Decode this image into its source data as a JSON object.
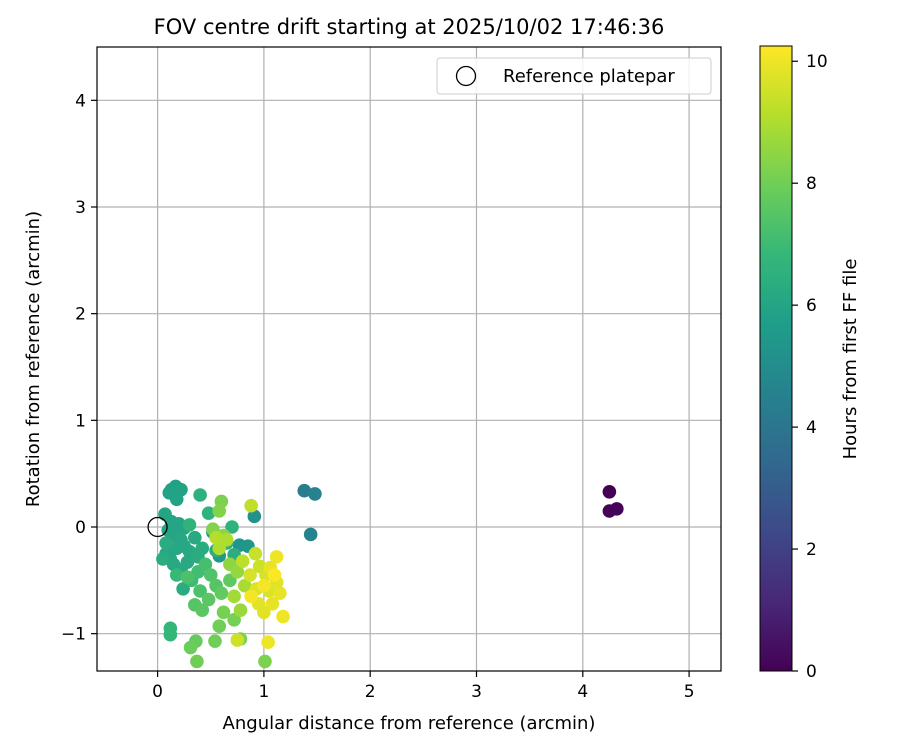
{
  "chart_data": {
    "type": "scatter",
    "title": "FOV centre drift starting at 2025/10/02 17:46:36",
    "xlabel": "Angular distance from reference (arcmin)",
    "ylabel": "Rotation from reference (arcmin)",
    "xlim": [
      -0.57,
      5.3
    ],
    "ylim": [
      -1.35,
      4.5
    ],
    "xticks": [
      0,
      1,
      2,
      3,
      4,
      5
    ],
    "yticks": [
      -1,
      0,
      1,
      2,
      3,
      4
    ],
    "grid": true,
    "legend": {
      "position": "top-right",
      "entries": [
        {
          "label": "Reference platepar",
          "marker": "open-circle"
        }
      ]
    },
    "reference_point": {
      "x": 0,
      "y": 0
    },
    "colorbar": {
      "label": "Hours from first FF file",
      "min": 0,
      "max": 10.25,
      "ticks": [
        0,
        2,
        4,
        6,
        8,
        10
      ],
      "colormap": "viridis"
    },
    "colormap_stops": [
      "#440154",
      "#482878",
      "#3e4989",
      "#31688e",
      "#26828e",
      "#1f9e89",
      "#35b779",
      "#6ece58",
      "#b5de2b",
      "#fde725"
    ],
    "points": [
      {
        "x": 4.25,
        "y": 0.33,
        "h": 0.0
      },
      {
        "x": 4.25,
        "y": 0.15,
        "h": 0.05
      },
      {
        "x": 4.32,
        "y": 0.17,
        "h": 0.1
      },
      {
        "x": 1.38,
        "y": 0.34,
        "h": 4.4
      },
      {
        "x": 1.48,
        "y": 0.31,
        "h": 4.5
      },
      {
        "x": 1.44,
        "y": -0.07,
        "h": 4.6
      },
      {
        "x": 0.91,
        "y": 0.1,
        "h": 5.2
      },
      {
        "x": 0.77,
        "y": -0.17,
        "h": 5.3
      },
      {
        "x": 0.85,
        "y": -0.18,
        "h": 5.4
      },
      {
        "x": 0.58,
        "y": -0.27,
        "h": 5.5
      },
      {
        "x": 0.52,
        "y": -0.05,
        "h": 5.6
      },
      {
        "x": 0.13,
        "y": 0.35,
        "h": 5.8
      },
      {
        "x": 0.17,
        "y": 0.38,
        "h": 5.8
      },
      {
        "x": 0.22,
        "y": 0.35,
        "h": 5.9
      },
      {
        "x": 0.11,
        "y": 0.32,
        "h": 5.9
      },
      {
        "x": 0.18,
        "y": 0.26,
        "h": 5.9
      },
      {
        "x": 0.07,
        "y": 0.12,
        "h": 6.0
      },
      {
        "x": 0.13,
        "y": 0.05,
        "h": 6.0
      },
      {
        "x": 0.2,
        "y": 0.03,
        "h": 6.0
      },
      {
        "x": 0.25,
        "y": -0.01,
        "h": 6.0
      },
      {
        "x": 0.1,
        "y": -0.03,
        "h": 6.0
      },
      {
        "x": 0.15,
        "y": -0.08,
        "h": 6.0
      },
      {
        "x": 0.22,
        "y": -0.12,
        "h": 6.1
      },
      {
        "x": 0.08,
        "y": -0.25,
        "h": 6.1
      },
      {
        "x": 0.12,
        "y": -0.3,
        "h": 6.1
      },
      {
        "x": 0.18,
        "y": -0.2,
        "h": 6.1
      },
      {
        "x": 0.25,
        "y": -0.18,
        "h": 6.1
      },
      {
        "x": 0.3,
        "y": -0.23,
        "h": 6.2
      },
      {
        "x": 0.15,
        "y": -0.35,
        "h": 6.2
      },
      {
        "x": 0.22,
        "y": -0.4,
        "h": 6.2
      },
      {
        "x": 0.28,
        "y": -0.33,
        "h": 6.2
      },
      {
        "x": 0.35,
        "y": -0.1,
        "h": 6.2
      },
      {
        "x": 0.38,
        "y": -0.28,
        "h": 6.3
      },
      {
        "x": 0.24,
        "y": -0.58,
        "h": 6.3
      },
      {
        "x": 0.42,
        "y": -0.2,
        "h": 6.3
      },
      {
        "x": 0.05,
        "y": -0.3,
        "h": 6.3
      },
      {
        "x": 0.08,
        "y": -0.15,
        "h": 6.3
      },
      {
        "x": 0.55,
        "y": -0.22,
        "h": 6.4
      },
      {
        "x": 0.65,
        "y": -0.15,
        "h": 6.4
      },
      {
        "x": 0.72,
        "y": -0.26,
        "h": 6.4
      },
      {
        "x": 0.4,
        "y": 0.3,
        "h": 6.5
      },
      {
        "x": 0.48,
        "y": 0.13,
        "h": 6.6
      },
      {
        "x": 0.7,
        "y": 0.0,
        "h": 6.6
      },
      {
        "x": 0.3,
        "y": 0.02,
        "h": 6.6
      },
      {
        "x": 0.12,
        "y": -0.95,
        "h": 6.8
      },
      {
        "x": 0.12,
        "y": -1.01,
        "h": 6.8
      },
      {
        "x": 0.18,
        "y": -0.45,
        "h": 6.9
      },
      {
        "x": 0.32,
        "y": -0.5,
        "h": 7.0
      },
      {
        "x": 0.38,
        "y": -0.42,
        "h": 7.1
      },
      {
        "x": 0.45,
        "y": -0.35,
        "h": 7.2
      },
      {
        "x": 0.28,
        "y": -0.47,
        "h": 7.3
      },
      {
        "x": 0.4,
        "y": -0.6,
        "h": 7.3
      },
      {
        "x": 0.5,
        "y": -0.45,
        "h": 7.4
      },
      {
        "x": 0.55,
        "y": -0.55,
        "h": 7.5
      },
      {
        "x": 0.35,
        "y": -0.73,
        "h": 7.5
      },
      {
        "x": 0.42,
        "y": -0.78,
        "h": 7.6
      },
      {
        "x": 0.48,
        "y": -0.68,
        "h": 7.6
      },
      {
        "x": 0.6,
        "y": -0.62,
        "h": 7.7
      },
      {
        "x": 0.68,
        "y": -0.5,
        "h": 7.7
      },
      {
        "x": 0.36,
        "y": -1.07,
        "h": 7.8
      },
      {
        "x": 0.31,
        "y": -1.13,
        "h": 7.9
      },
      {
        "x": 0.37,
        "y": -1.26,
        "h": 8.0
      },
      {
        "x": 0.54,
        "y": -1.07,
        "h": 8.0
      },
      {
        "x": 0.58,
        "y": -0.93,
        "h": 8.0
      },
      {
        "x": 0.62,
        "y": -0.8,
        "h": 8.1
      },
      {
        "x": 0.72,
        "y": -0.87,
        "h": 8.1
      },
      {
        "x": 0.78,
        "y": -1.05,
        "h": 8.2
      },
      {
        "x": 1.01,
        "y": -1.26,
        "h": 8.2
      },
      {
        "x": 0.6,
        "y": 0.24,
        "h": 8.2
      },
      {
        "x": 0.58,
        "y": 0.15,
        "h": 8.3
      },
      {
        "x": 0.52,
        "y": -0.02,
        "h": 8.3
      },
      {
        "x": 0.62,
        "y": -0.08,
        "h": 8.4
      },
      {
        "x": 0.68,
        "y": -0.35,
        "h": 8.5
      },
      {
        "x": 0.75,
        "y": -0.42,
        "h": 8.6
      },
      {
        "x": 0.78,
        "y": -0.78,
        "h": 8.7
      },
      {
        "x": 0.72,
        "y": -0.65,
        "h": 8.8
      },
      {
        "x": 0.82,
        "y": -0.55,
        "h": 8.9
      },
      {
        "x": 0.58,
        "y": -0.2,
        "h": 9.0
      },
      {
        "x": 0.65,
        "y": -0.12,
        "h": 9.0
      },
      {
        "x": 0.55,
        "y": -0.1,
        "h": 9.1
      },
      {
        "x": 0.8,
        "y": -0.32,
        "h": 9.2
      },
      {
        "x": 0.88,
        "y": 0.2,
        "h": 9.3
      },
      {
        "x": 0.75,
        "y": -1.06,
        "h": 9.5
      },
      {
        "x": 0.92,
        "y": -0.25,
        "h": 9.4
      },
      {
        "x": 0.96,
        "y": -0.37,
        "h": 9.5
      },
      {
        "x": 1.02,
        "y": -0.45,
        "h": 9.6
      },
      {
        "x": 0.87,
        "y": -0.45,
        "h": 9.6
      },
      {
        "x": 0.93,
        "y": -0.58,
        "h": 9.7
      },
      {
        "x": 1.05,
        "y": -0.6,
        "h": 9.7
      },
      {
        "x": 1.12,
        "y": -0.52,
        "h": 9.8
      },
      {
        "x": 0.95,
        "y": -0.72,
        "h": 9.8
      },
      {
        "x": 1.0,
        "y": -0.8,
        "h": 9.8
      },
      {
        "x": 1.08,
        "y": -0.72,
        "h": 9.9
      },
      {
        "x": 1.15,
        "y": -0.62,
        "h": 9.9
      },
      {
        "x": 1.06,
        "y": -0.38,
        "h": 9.9
      },
      {
        "x": 1.12,
        "y": -0.28,
        "h": 10.0
      },
      {
        "x": 1.18,
        "y": -0.84,
        "h": 10.0
      },
      {
        "x": 1.04,
        "y": -1.08,
        "h": 10.0
      },
      {
        "x": 0.88,
        "y": -0.65,
        "h": 10.1
      },
      {
        "x": 1.0,
        "y": -0.55,
        "h": 10.1
      },
      {
        "x": 1.1,
        "y": -0.45,
        "h": 10.2
      }
    ]
  }
}
